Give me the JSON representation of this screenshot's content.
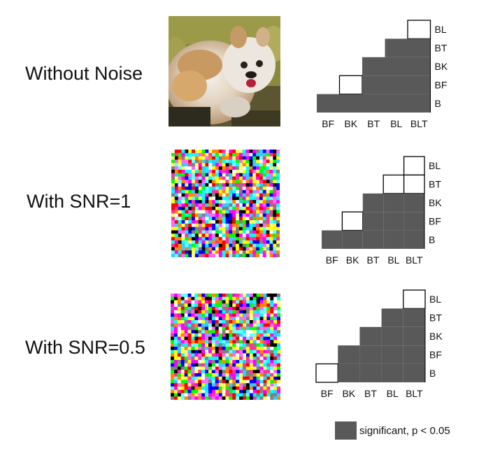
{
  "rows": [
    {
      "label": "Without Noise",
      "image": "dog-photo"
    },
    {
      "label": "With SNR=1",
      "image": "noise-snr-1"
    },
    {
      "label": "With SNR=0.5",
      "image": "noise-snr-0.5"
    }
  ],
  "stair_charts": [
    {
      "columns": [
        "BF",
        "BK",
        "BT",
        "BL",
        "BLT"
      ],
      "rows": [
        "BL",
        "BT",
        "BK",
        "BF",
        "B"
      ],
      "cells": [
        [
          0,
          0,
          0,
          0,
          2
        ],
        [
          0,
          0,
          0,
          1,
          1
        ],
        [
          0,
          0,
          1,
          1,
          1
        ],
        [
          0,
          2,
          1,
          1,
          1
        ],
        [
          1,
          1,
          1,
          1,
          1
        ]
      ]
    },
    {
      "columns": [
        "BF",
        "BK",
        "BT",
        "BL",
        "BLT"
      ],
      "rows": [
        "BL",
        "BT",
        "BK",
        "BF",
        "B"
      ],
      "cells": [
        [
          0,
          0,
          0,
          0,
          2
        ],
        [
          0,
          0,
          0,
          2,
          2
        ],
        [
          0,
          0,
          1,
          1,
          1
        ],
        [
          0,
          2,
          1,
          1,
          1
        ],
        [
          1,
          1,
          1,
          1,
          1
        ]
      ]
    },
    {
      "columns": [
        "BF",
        "BK",
        "BT",
        "BL",
        "BLT"
      ],
      "rows": [
        "BL",
        "BT",
        "BK",
        "BF",
        "B"
      ],
      "cells": [
        [
          0,
          0,
          0,
          0,
          2
        ],
        [
          0,
          0,
          0,
          1,
          1
        ],
        [
          0,
          0,
          1,
          1,
          1
        ],
        [
          0,
          1,
          1,
          1,
          1
        ],
        [
          2,
          1,
          1,
          1,
          1
        ]
      ]
    }
  ],
  "cell_states": {
    "0": "empty",
    "1": "significant",
    "2": "not significant"
  },
  "colors": {
    "significant": "#595959",
    "not_significant": "#ffffff",
    "outline": "#000000"
  },
  "legend": {
    "label": "significant, p < 0.05",
    "color": "#595959"
  }
}
